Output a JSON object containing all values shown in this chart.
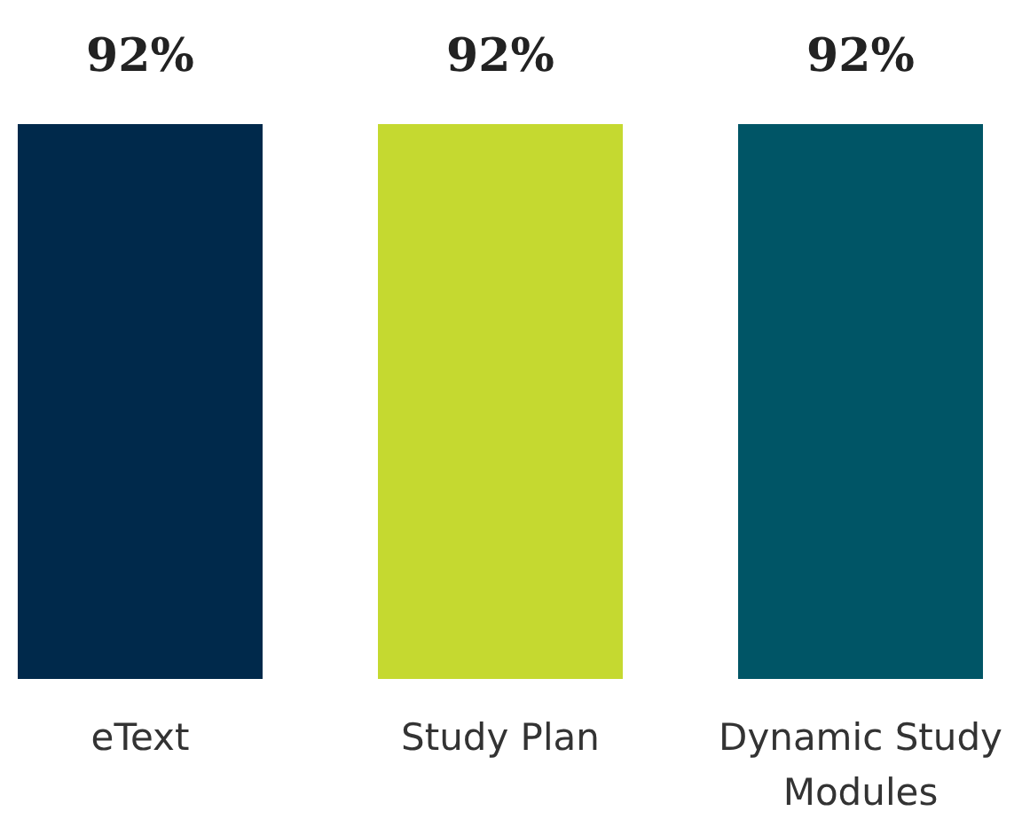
{
  "chart_data": {
    "type": "bar",
    "categories": [
      "eText",
      "Study Plan",
      "Dynamic Study Modules"
    ],
    "values": [
      92,
      92,
      92
    ],
    "colors": [
      "#00294b",
      "#c5d930",
      "#005566"
    ],
    "value_labels": [
      "92%",
      "92%",
      "92%"
    ]
  }
}
